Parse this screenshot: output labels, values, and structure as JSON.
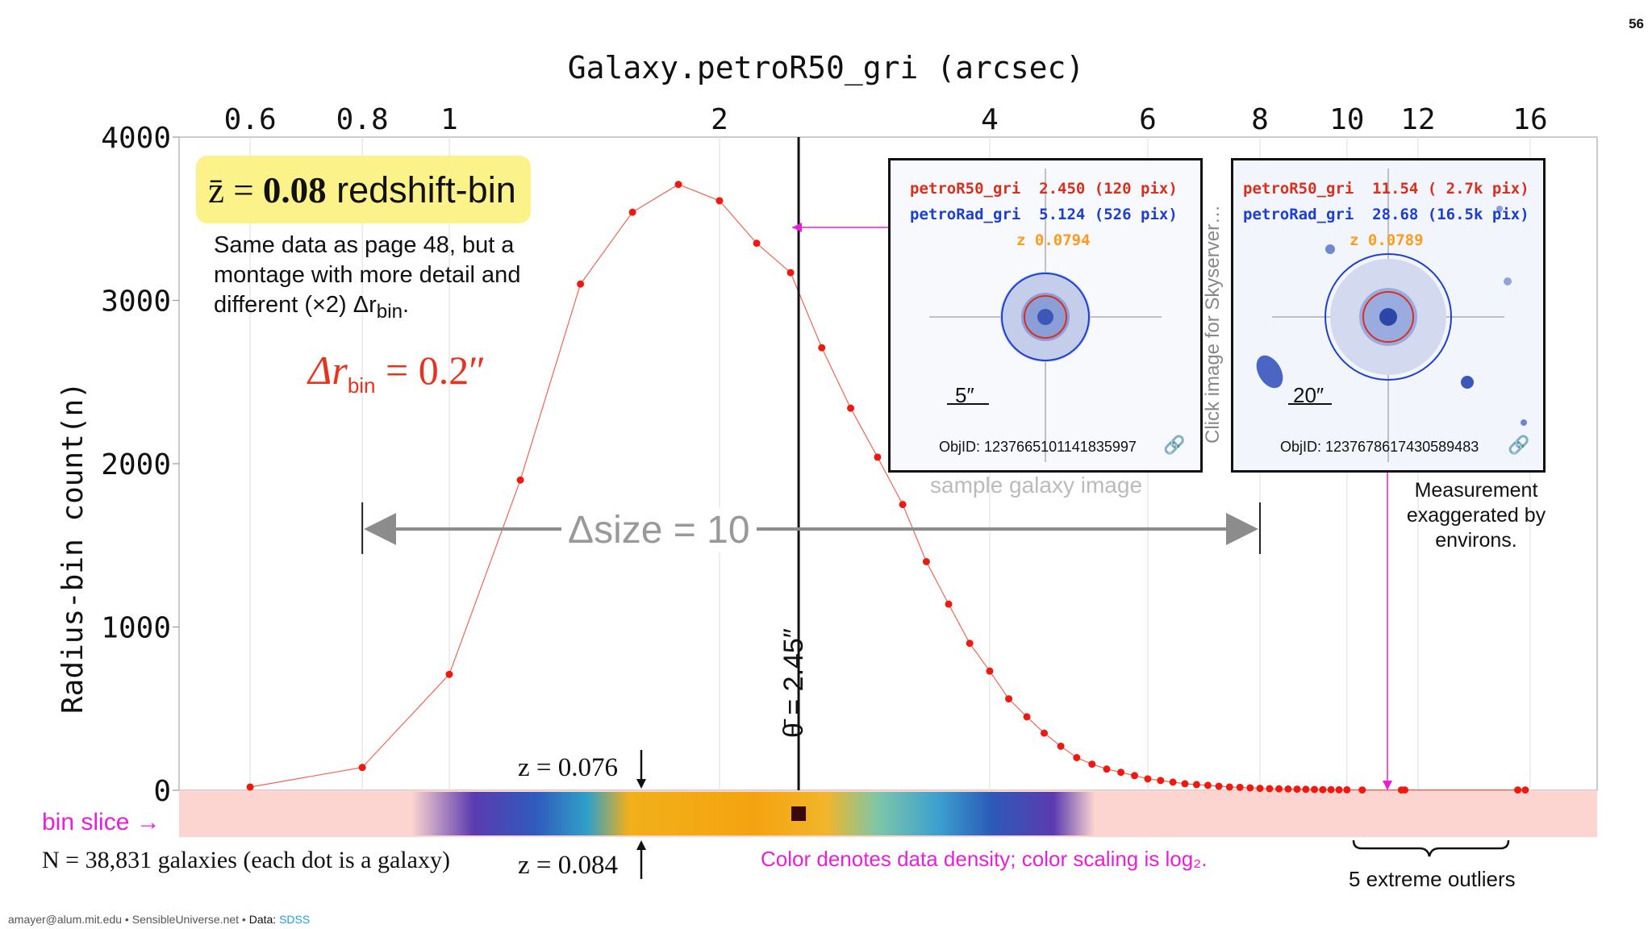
{
  "page_number": "56",
  "top_axis_title": "Galaxy.petroR50_gri (arcsec)",
  "y_axis_title": "Radius-bin count(n)",
  "note": {
    "title_zbar": "z̄ = ",
    "title_value": "0.08",
    "title_rest": " redshift-bin",
    "desc": "Same data as page 48, but a montage with more detail and different (×2) Δr",
    "desc_sub": "bin",
    "desc_end": "."
  },
  "dr_bin_label": "Δr",
  "dr_bin_sub": "bin",
  "dr_bin_value": " = 0.2″",
  "delta_size_label": "Δsize = 10",
  "theta_label": "θ̄ = 2.45″",
  "bin_slice_label": "bin slice →",
  "galaxy_count_label": "N = 38,831 galaxies (each dot is a galaxy)",
  "z_top_label": "z = 0.076",
  "z_bottom_label": "z = 0.084",
  "color_note": "Color denotes data density; color scaling is log₂.",
  "outliers_label": "5 extreme outliers",
  "measurement_note": "Measurement exaggerated by environs.",
  "sample_image_label": "sample galaxy image",
  "click_label": "Click image for Skyserver…",
  "cards": [
    {
      "line1_name": "petroR50_gri",
      "line1_value": "2.450 (120 pix)",
      "line2_name": "petroRad_gri",
      "line2_value": "5.124 (526 pix)",
      "line3_name": "z",
      "line3_value": "0.0794",
      "scale": "5″",
      "objid": "ObjID: 1237665101141835997"
    },
    {
      "line1_name": "petroR50_gri",
      "line1_value": "11.54 ( 2.7k pix)",
      "line2_name": "petroRad_gri",
      "line2_value": "28.68 (16.5k pix)",
      "line3_name": "z",
      "line3_value": "0.0789",
      "scale": "20″",
      "objid": "ObjID: 1237678617430589483"
    }
  ],
  "footer": {
    "email": "amayer@alum.mit.edu",
    "site": "SensibleUniverse.net",
    "data_label": "Data:",
    "source": "SDSS"
  },
  "colors": {
    "curve": "#e8321e",
    "accent_magenta": "#e81fd6",
    "note_bg": "#fbf28a",
    "bin_band": "#fcd5d0"
  },
  "chart_data": {
    "type": "line",
    "title": "Galaxy.petroR50_gri (arcsec)",
    "xscale": "log",
    "xlim": [
      0.5,
      19
    ],
    "ylim": [
      0,
      4000
    ],
    "yticks": [
      0,
      1000,
      2000,
      3000,
      4000
    ],
    "ytick_labels": [
      "0",
      "1000",
      "2000",
      "3000",
      "4000"
    ],
    "xticks": [
      0.6,
      0.8,
      1,
      2,
      4,
      6,
      8,
      10,
      12,
      16
    ],
    "xtick_labels": [
      "0.6",
      "0.8",
      "1",
      "2",
      "4",
      "6",
      "8",
      "10",
      "12",
      "16"
    ],
    "ylabel": "Radius-bin count(n)",
    "mean_theta": 2.45,
    "delta_size_range": [
      0.8,
      8
    ],
    "series": [
      {
        "name": "Radius-bin count",
        "x": [
          0.6,
          0.8,
          1.0,
          1.2,
          1.4,
          1.6,
          1.8,
          2.0,
          2.2,
          2.4,
          2.6,
          2.8,
          3.0,
          3.2,
          3.4,
          3.6,
          3.8,
          4.0,
          4.2,
          4.4,
          4.6,
          4.8,
          5.0,
          5.2,
          5.4,
          5.6,
          5.8,
          6.0,
          6.2,
          6.4,
          6.6,
          6.8,
          7.0,
          7.2,
          7.4,
          7.6,
          7.8,
          8.0,
          8.2,
          8.4,
          8.6,
          8.8,
          9.0,
          9.2,
          9.4,
          9.6,
          9.8,
          10.0,
          10.4,
          11.5,
          11.6,
          15.5,
          15.8
        ],
        "y": [
          20,
          140,
          710,
          1900,
          3100,
          3540,
          3710,
          3610,
          3350,
          3170,
          2710,
          2340,
          2040,
          1750,
          1400,
          1140,
          900,
          730,
          560,
          450,
          350,
          270,
          200,
          160,
          130,
          110,
          90,
          70,
          60,
          50,
          40,
          35,
          30,
          25,
          20,
          18,
          15,
          12,
          10,
          9,
          8,
          7,
          6,
          5,
          4,
          4,
          3,
          3,
          2,
          2,
          2,
          2,
          2
        ]
      }
    ],
    "annotations": [
      "Δsize = 10",
      "θ̄ = 2.45″",
      "5 extreme outliers"
    ]
  }
}
